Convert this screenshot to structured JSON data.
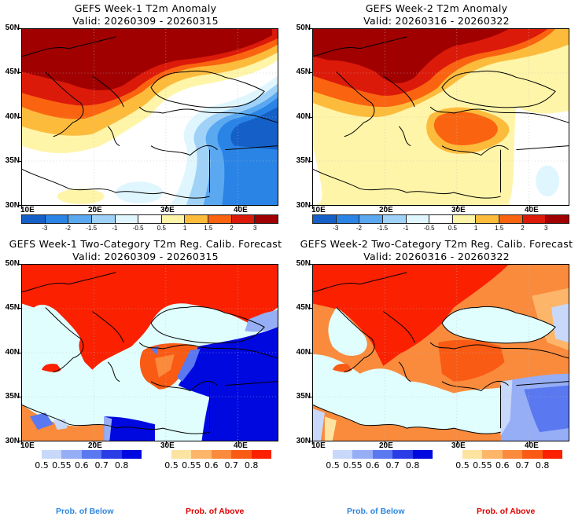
{
  "panels": [
    {
      "id": "week1-anomaly",
      "title": "GEFS Week-1 T2m Anomaly",
      "valid": "Valid: 20260309 - 20260315",
      "kind": "anomaly"
    },
    {
      "id": "week2-anomaly",
      "title": "GEFS Week-2 T2m Anomaly",
      "valid": "Valid: 20260316 - 20260322",
      "kind": "anomaly"
    },
    {
      "id": "week1-probability",
      "title": "GEFS Week-1 Two-Category T2m Reg. Calib. Forecast",
      "valid": "Valid: 20260309 - 20260315",
      "kind": "probability"
    },
    {
      "id": "week2-probability",
      "title": "GEFS Week-2 Two-Category T2m Reg. Calib. Forecast",
      "valid": "Valid: 20260316 - 20260322",
      "kind": "probability"
    }
  ],
  "axes": {
    "lat_labels": [
      "50N",
      "45N",
      "40N",
      "35N",
      "30N"
    ],
    "lon_labels": [
      "10E",
      "20E",
      "30E",
      "40E"
    ],
    "lat_range": [
      30,
      50
    ],
    "lon_range": [
      10,
      45.5
    ]
  },
  "anomaly_colorbar": {
    "colors": [
      "#1560c8",
      "#2a84e6",
      "#5aa8f0",
      "#a0d2f8",
      "#e0f6fe",
      "#ffffff",
      "#fff5a8",
      "#fdbb3c",
      "#fa6410",
      "#dc1a0a",
      "#a00000"
    ],
    "labels": [
      "-3",
      "-2",
      "-1.5",
      "-1",
      "-0.5",
      "0.5",
      "1",
      "1.5",
      "2",
      "3"
    ]
  },
  "below_colorbar": {
    "colors": [
      "#c8d8fa",
      "#96aef5",
      "#5a78f0",
      "#2a3ce6",
      "#0008e0"
    ],
    "labels": [
      "0.5",
      "0.55",
      "0.6",
      "0.7",
      "0.8"
    ]
  },
  "above_colorbar": {
    "colors": [
      "#fde3a0",
      "#fdb56a",
      "#fa8a3c",
      "#f95a14",
      "#fa2000"
    ],
    "labels": [
      "0.5",
      "0.55",
      "0.6",
      "0.7",
      "0.8"
    ]
  },
  "footer": {
    "below_label": "Prob. of Below",
    "above_label": "Prob. of Above",
    "below_color": "#2e86de",
    "above_color": "#e00000"
  },
  "ocean_color": "#e0fefe"
}
